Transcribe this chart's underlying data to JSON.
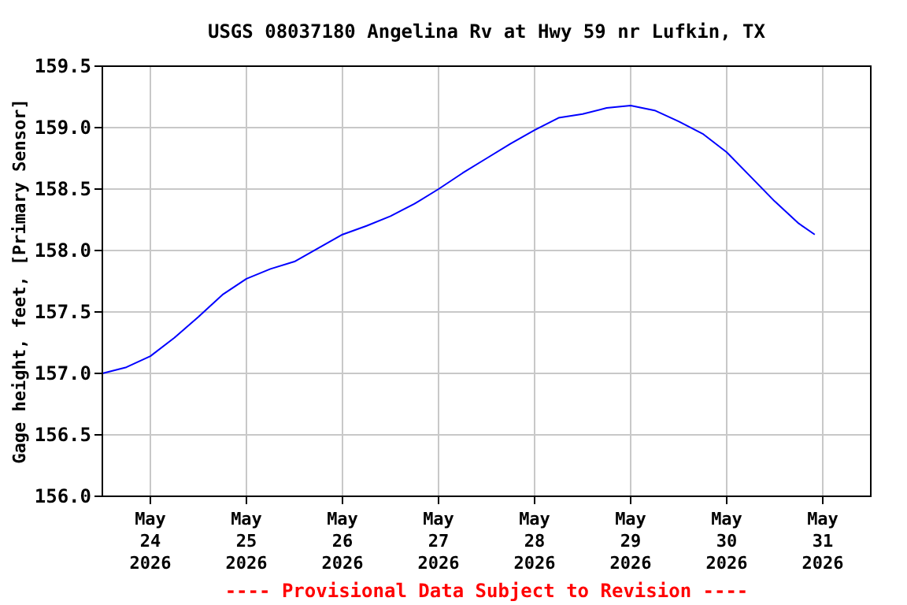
{
  "chart_data": {
    "type": "line",
    "title": "USGS 08037180 Angelina Rv at Hwy 59 nr Lufkin, TX",
    "ylabel": "Gage height, feet, [Primary Sensor]",
    "annotations": [
      "---- Provisional Data Subject to Revision ----"
    ],
    "x": [
      "2026-05-23T12:00",
      "2026-05-23T18:00",
      "2026-05-24T00:00",
      "2026-05-24T06:00",
      "2026-05-24T12:00",
      "2026-05-24T18:00",
      "2026-05-25T00:00",
      "2026-05-25T06:00",
      "2026-05-25T12:00",
      "2026-05-25T18:00",
      "2026-05-26T00:00",
      "2026-05-26T06:00",
      "2026-05-26T12:00",
      "2026-05-26T18:00",
      "2026-05-27T00:00",
      "2026-05-27T06:00",
      "2026-05-27T12:00",
      "2026-05-27T18:00",
      "2026-05-28T00:00",
      "2026-05-28T06:00",
      "2026-05-28T12:00",
      "2026-05-28T18:00",
      "2026-05-29T00:00",
      "2026-05-29T06:00",
      "2026-05-29T12:00",
      "2026-05-29T18:00",
      "2026-05-30T00:00",
      "2026-05-30T06:00",
      "2026-05-30T12:00",
      "2026-05-30T18:00",
      "2026-05-30T22:00"
    ],
    "series": [
      {
        "color": "#0000ff",
        "values": [
          157.0,
          157.05,
          157.14,
          157.29,
          157.46,
          157.64,
          157.77,
          157.85,
          157.91,
          158.02,
          158.13,
          158.2,
          158.28,
          158.38,
          158.5,
          158.63,
          158.75,
          158.87,
          158.98,
          159.08,
          159.11,
          159.16,
          159.18,
          159.14,
          159.05,
          158.95,
          158.8,
          158.6,
          158.4,
          158.22,
          158.13
        ]
      }
    ],
    "xlim": [
      "2026-05-23T12:00",
      "2026-05-31T12:00"
    ],
    "xticks": [
      {
        "value": "2026-05-24",
        "label": "May\n24\n2026"
      },
      {
        "value": "2026-05-25",
        "label": "May\n25\n2026"
      },
      {
        "value": "2026-05-26",
        "label": "May\n26\n2026"
      },
      {
        "value": "2026-05-27",
        "label": "May\n27\n2026"
      },
      {
        "value": "2026-05-28",
        "label": "May\n28\n2026"
      },
      {
        "value": "2026-05-29",
        "label": "May\n29\n2026"
      },
      {
        "value": "2026-05-30",
        "label": "May\n30\n2026"
      },
      {
        "value": "2026-05-31",
        "label": "May\n31\n2026"
      }
    ],
    "ylim": [
      156.0,
      159.5
    ],
    "yticks": [
      {
        "value": 156.0,
        "label": "156.0"
      },
      {
        "value": 156.5,
        "label": "156.5"
      },
      {
        "value": 157.0,
        "label": "157.0"
      },
      {
        "value": 157.5,
        "label": "157.5"
      },
      {
        "value": 158.0,
        "label": "158.0"
      },
      {
        "value": 158.5,
        "label": "158.5"
      },
      {
        "value": 159.0,
        "label": "159.0"
      },
      {
        "value": 159.5,
        "label": "159.5"
      }
    ],
    "grid": true,
    "marker": "none",
    "line_style": "solid"
  }
}
